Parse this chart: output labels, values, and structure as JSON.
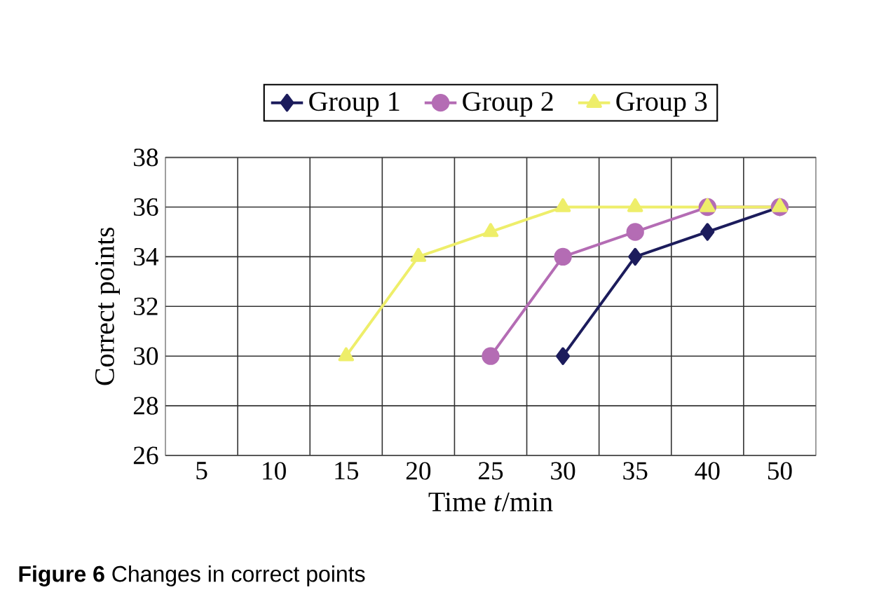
{
  "chart_data": {
    "type": "line",
    "xlabel": "Time *t*/min",
    "ylabel": "Correct points",
    "categories": [
      "5",
      "10",
      "15",
      "20",
      "25",
      "30",
      "35",
      "40",
      "50"
    ],
    "series": [
      {
        "name": "Group 1",
        "color": "#1c1c5c",
        "marker": "diamond",
        "values": [
          null,
          null,
          null,
          null,
          null,
          30,
          34,
          35,
          36
        ]
      },
      {
        "name": "Group 2",
        "color": "#b46cb4",
        "marker": "circle",
        "values": [
          null,
          null,
          null,
          null,
          30,
          34,
          35,
          36,
          36
        ]
      },
      {
        "name": "Group 3",
        "color": "#eeee6a",
        "marker": "triangle",
        "values": [
          null,
          null,
          30,
          34,
          35,
          36,
          36,
          36,
          36
        ]
      }
    ],
    "ylim": [
      26,
      38
    ],
    "yticks": [
      26,
      28,
      30,
      32,
      34,
      36,
      38
    ],
    "grid": true,
    "legend": "top",
    "annotations": [
      "**Figure 6** Changes in correct points"
    ]
  }
}
